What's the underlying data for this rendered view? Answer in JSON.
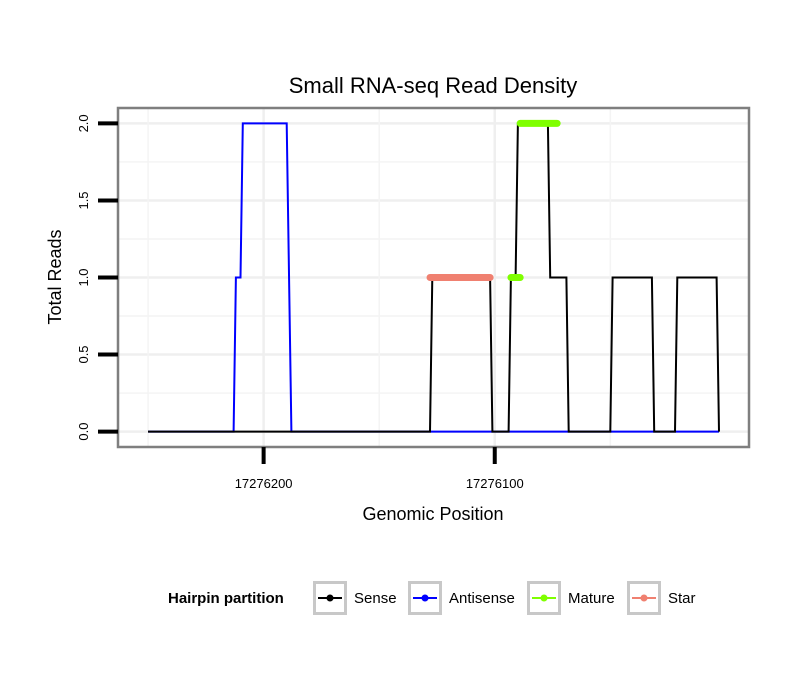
{
  "chart_data": {
    "type": "line",
    "title": "Small RNA-seq Read Density",
    "xlabel": "Genomic Position",
    "ylabel": "Total Reads",
    "x_reversed": true,
    "xlim": [
      17276263,
      17275990
    ],
    "ylim": [
      -0.1,
      2.1
    ],
    "x_ticks": [
      17276200,
      17276100
    ],
    "x_tick_labels": [
      "17276200",
      "17276100"
    ],
    "y_ticks": [
      0,
      0.5,
      1,
      1.5,
      2
    ],
    "y_tick_labels": [
      "0.0",
      "0.5",
      "1.0",
      "1.5",
      "2.0"
    ],
    "grid": true,
    "legend": {
      "title": "Hairpin partition",
      "position": "bottom",
      "entries": [
        "Sense",
        "Antisense",
        "Mature",
        "Star"
      ]
    },
    "series": [
      {
        "name": "Antisense",
        "color": "#0000ff",
        "x": [
          17276250,
          17276213,
          17276212,
          17276210,
          17276209,
          17276190,
          17276188,
          17276003
        ],
        "y": [
          0,
          0,
          1,
          1,
          2,
          2,
          0,
          0
        ]
      },
      {
        "name": "Sense",
        "color": "#000000",
        "x": [
          17276250,
          17276128,
          17276127,
          17276102,
          17276101,
          17276094,
          17276093,
          17276091,
          17276090,
          17276077,
          17276076,
          17276069,
          17276068,
          17276050,
          17276049,
          17276032,
          17276031,
          17276022,
          17276021,
          17276004,
          17276003
        ],
        "y": [
          0,
          0,
          1,
          1,
          0,
          0,
          1,
          1,
          2,
          2,
          1,
          1,
          0,
          0,
          1,
          1,
          0,
          0,
          1,
          1,
          0
        ]
      },
      {
        "name": "Mature",
        "color": "#7fff00",
        "segments": [
          {
            "x_start": 17276093,
            "x_end": 17276089,
            "y": 1
          },
          {
            "x_start": 17276089,
            "x_end": 17276073,
            "y": 2
          }
        ]
      },
      {
        "name": "Star",
        "color": "#f08070",
        "segments": [
          {
            "x_start": 17276128,
            "x_end": 17276102,
            "y": 1
          }
        ]
      }
    ]
  }
}
